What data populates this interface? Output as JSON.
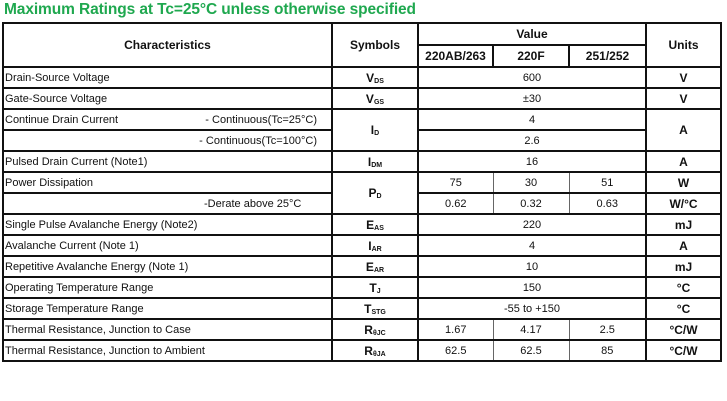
{
  "title": "Maximum Ratings at Tc=25°C unless otherwise specified",
  "header": {
    "characteristics": "Characteristics",
    "symbols": "Symbols",
    "value": "Value",
    "units": "Units",
    "packages": [
      "220AB/263",
      "220F",
      "251/252"
    ]
  },
  "rows": [
    {
      "name": "Drain-Source Voltage",
      "sym": "V",
      "sub": "DS",
      "value": "600",
      "unit": "V"
    },
    {
      "name": "Gate-Source Voltage",
      "sym": "V",
      "sub": "GS",
      "value": "±30",
      "unit": "V"
    },
    {
      "name": "Continue Drain Current",
      "cond1": "- Continuous(Tc=25°C)",
      "cond2": "- Continuous(Tc=100°C)",
      "sym": "I",
      "sub": "D",
      "value1": "4",
      "value2": "2.6",
      "unit": "A"
    },
    {
      "name": "Pulsed Drain Current (Note1)",
      "sym": "I",
      "sub": "DM",
      "value": "16",
      "unit": "A"
    },
    {
      "name": "Power Dissipation",
      "cond2": "-Derate above 25°C",
      "sym": "P",
      "sub": "D",
      "values1": [
        "75",
        "30",
        "51"
      ],
      "unit1": "W",
      "values2": [
        "0.62",
        "0.32",
        "0.63"
      ],
      "unit2": "W/°C"
    },
    {
      "name": "Single Pulse Avalanche Energy (Note2)",
      "sym": "E",
      "sub": "AS",
      "value": "220",
      "unit": "mJ"
    },
    {
      "name": "Avalanche Current (Note 1)",
      "sym": "I",
      "sub": "AR",
      "value": "4",
      "unit": "A"
    },
    {
      "name": "Repetitive Avalanche Energy (Note 1)",
      "sym": "E",
      "sub": "AR",
      "value": "10",
      "unit": "mJ"
    },
    {
      "name": "Operating Temperature Range",
      "sym": "T",
      "sub": "J",
      "value": "150",
      "unit": "°C"
    },
    {
      "name": "Storage Temperature Range",
      "sym": "T",
      "sub": "STG",
      "value": "-55 to +150",
      "unit": "°C"
    },
    {
      "name": "Thermal Resistance, Junction to Case",
      "sym": "R",
      "sub": "θJC",
      "values": [
        "1.67",
        "4.17",
        "2.5"
      ],
      "unit": "°C/W"
    },
    {
      "name": "Thermal Resistance, Junction to Ambient",
      "sym": "R",
      "sub": "θJA",
      "values": [
        "62.5",
        "62.5",
        "85"
      ],
      "unit": "°C/W"
    }
  ]
}
